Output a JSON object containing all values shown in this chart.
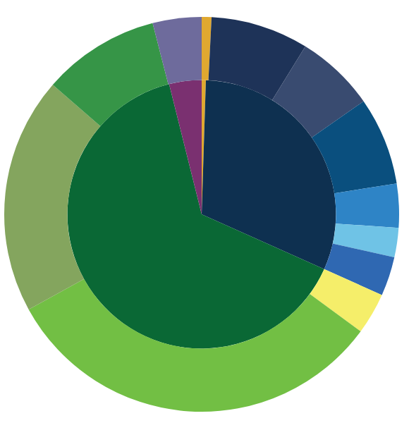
{
  "chart_data": {
    "type": "donut",
    "series": [
      {
        "values": [
          0.8,
          8,
          6.5,
          7.2,
          3.6,
          2.4,
          3.2,
          3.4,
          31.9,
          19.4,
          9.6,
          4.0
        ],
        "colors": [
          "#e0a830",
          "#1e3358",
          "#394b70",
          "#0a4f7e",
          "#2e84c6",
          "#6fc3e6",
          "#2f68b2",
          "#f5ee6a",
          "#72bf44",
          "#84a55e",
          "#369547",
          "#6e6b9c"
        ]
      },
      {
        "values": [
          0.5,
          31.2,
          64.4,
          3.9
        ],
        "colors": [
          "#e0a830",
          "#0e3050",
          "#0a6835",
          "#7a3070"
        ]
      }
    ],
    "legend": false
  }
}
